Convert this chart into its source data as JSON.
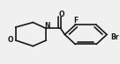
{
  "bg_color": "#f0f0f0",
  "line_color": "#1a1a1a",
  "line_width": 1.2,
  "font_size_label": 5.5,
  "labels": {
    "O_carbonyl": [
      0.535,
      0.88,
      "O"
    ],
    "N": [
      0.385,
      0.555,
      "N"
    ],
    "O_morpholine": [
      0.13,
      0.35,
      "O"
    ],
    "F": [
      0.685,
      0.87,
      "F"
    ],
    "Br": [
      0.895,
      0.21,
      "Br"
    ]
  }
}
